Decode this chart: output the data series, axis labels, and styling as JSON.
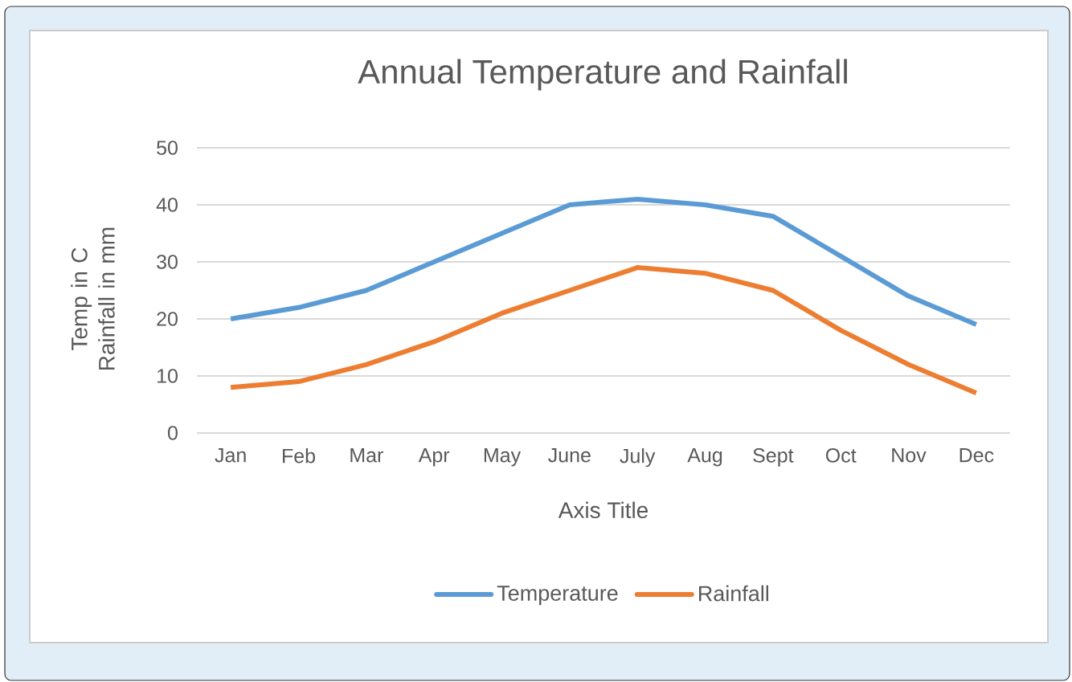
{
  "chart_data": {
    "type": "line",
    "title": "Annual Temperature and Rainfall",
    "xlabel": "Axis Title",
    "ylabel": "Temp in C Rainfall in mm",
    "categories": [
      "Jan",
      "Feb",
      "Mar",
      "Apr",
      "May",
      "June",
      "July",
      "Aug",
      "Sept",
      "Oct",
      "Nov",
      "Dec"
    ],
    "series": [
      {
        "name": "Temperature",
        "color": "#5b9bd5",
        "values": [
          20,
          22,
          25,
          30,
          35,
          40,
          41,
          40,
          38,
          31,
          24,
          19
        ]
      },
      {
        "name": "Rainfall",
        "color": "#ed7d31",
        "values": [
          8,
          9,
          12,
          16,
          21,
          25,
          29,
          28,
          25,
          18,
          12,
          7
        ]
      }
    ],
    "ylim": [
      0,
      50
    ],
    "yticks": [
      0,
      10,
      20,
      30,
      40,
      50
    ],
    "grid": "y",
    "legend": "bottom"
  }
}
